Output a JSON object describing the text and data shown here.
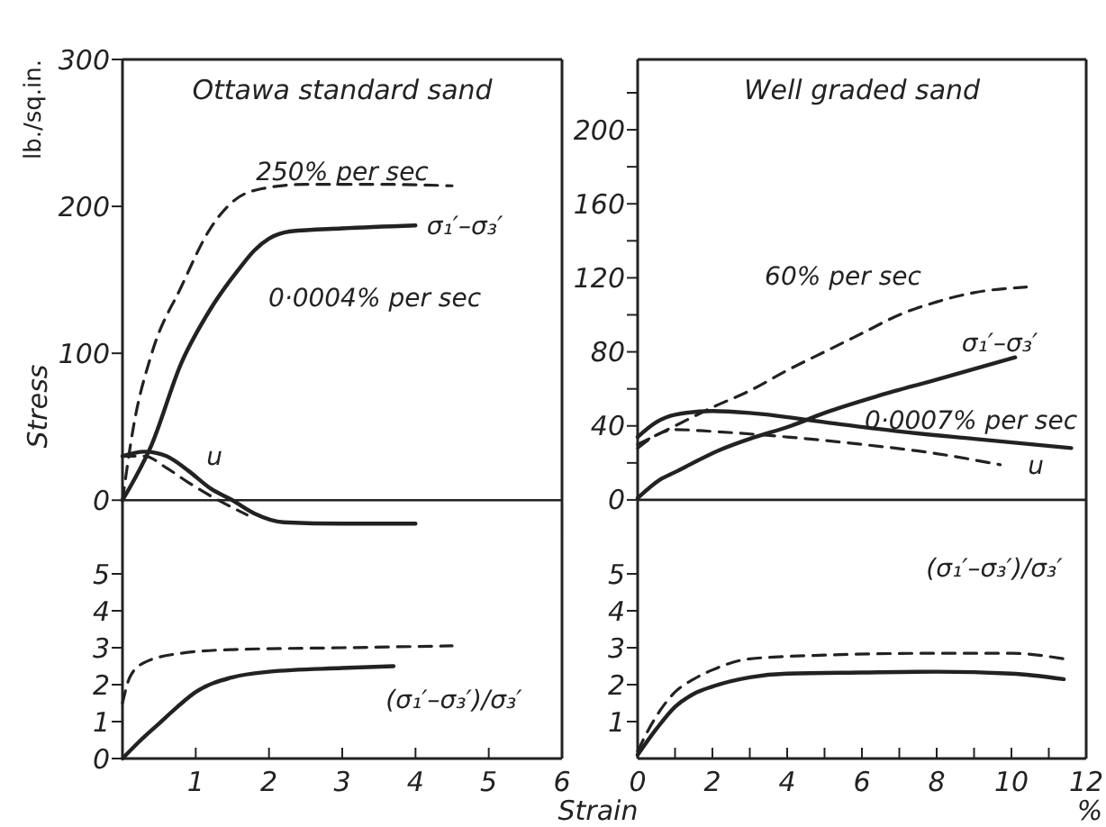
{
  "chart_data": [
    {
      "type": "line",
      "title": "Ottawa standard sand",
      "ylabel": "Stress",
      "xlim": [
        0,
        6
      ],
      "ylim": [
        -25,
        300
      ],
      "yticks": [
        0,
        100,
        200,
        300
      ],
      "tick_labels": "y",
      "ref_lines": [
        {
          "axis": "y",
          "value": 0
        }
      ],
      "annotations": [
        "lb./sq.in.",
        "250% per sec",
        "σ₁′–σ₃′",
        "0·0004% per sec",
        "u"
      ],
      "series": [
        {
          "color": "#222222",
          "line_style": "dashed",
          "x": [
            0,
            0.15,
            0.4,
            0.8,
            1.2,
            1.5,
            1.9,
            2.5,
            3.5,
            4.5
          ],
          "values": [
            0,
            50,
            100,
            145,
            185,
            203,
            212,
            215,
            215,
            214
          ]
        },
        {
          "color": "#222222",
          "line_style": "solid",
          "x": [
            0,
            0.4,
            0.8,
            1.2,
            1.6,
            1.8,
            2.0,
            2.3,
            3,
            4
          ],
          "values": [
            0,
            38,
            93,
            130,
            158,
            170,
            178,
            183,
            185,
            187
          ]
        },
        {
          "color": "#222222",
          "line_style": "solid",
          "x": [
            0,
            0.3,
            0.6,
            0.9,
            1.2,
            1.5,
            1.8,
            2.2,
            3,
            4
          ],
          "values": [
            30,
            33,
            30,
            20,
            8,
            0,
            -9,
            -15,
            -16,
            -16
          ]
        },
        {
          "color": "#222222",
          "line_style": "dashed",
          "x": [
            0,
            0.3,
            0.6,
            0.9,
            1.2,
            1.5,
            1.7
          ],
          "values": [
            30,
            30,
            22,
            12,
            3,
            -5,
            -10
          ]
        }
      ]
    },
    {
      "type": "line",
      "title": "Well graded sand",
      "xlim": [
        0,
        12
      ],
      "ylim": [
        -20,
        238
      ],
      "yticks": [
        0,
        {
          "value": 20,
          "label": null
        },
        40,
        {
          "value": 60,
          "label": null
        },
        80,
        {
          "value": 100,
          "label": null
        },
        120,
        {
          "value": 140,
          "label": null
        },
        160,
        {
          "value": 180,
          "label": null
        },
        200,
        {
          "value": 220,
          "label": null
        }
      ],
      "tick_labels": "y",
      "ref_lines": [
        {
          "axis": "y",
          "value": 0
        }
      ],
      "annotations": [
        "60% per sec",
        "σ₁′–σ₃′",
        "0·0007% per sec",
        "u"
      ],
      "series": [
        {
          "color": "#222222",
          "line_style": "dashed",
          "x": [
            0,
            0.5,
            1,
            2,
            3,
            4,
            5,
            6,
            7,
            8,
            9,
            10.4
          ],
          "values": [
            30,
            35,
            40,
            50,
            59,
            70,
            80,
            90,
            100,
            107,
            112,
            115
          ]
        },
        {
          "color": "#222222",
          "line_style": "solid",
          "x": [
            0,
            0.6,
            1,
            2.2,
            3,
            4.1,
            5,
            6.4,
            8,
            10.1
          ],
          "values": [
            1,
            11,
            15,
            27,
            33,
            40,
            47,
            56,
            65,
            77
          ]
        },
        {
          "color": "#222222",
          "line_style": "solid",
          "x": [
            0,
            0.5,
            1,
            2,
            3,
            5,
            7,
            9,
            11.6
          ],
          "values": [
            34,
            42,
            46,
            48,
            47,
            42,
            37,
            33,
            28
          ]
        },
        {
          "color": "#222222",
          "line_style": "dashed",
          "x": [
            0,
            0.5,
            1,
            2,
            4,
            6,
            8,
            9.7
          ],
          "values": [
            28,
            35,
            38,
            37,
            34,
            30,
            25,
            19
          ]
        }
      ]
    },
    {
      "type": "line",
      "xlabel": "Strain",
      "xlim": [
        0,
        6
      ],
      "ylim": [
        0,
        6
      ],
      "xticks": [
        {
          "value": 0,
          "label": null
        },
        1,
        2,
        3,
        4,
        5,
        6
      ],
      "yticks": [
        0,
        1,
        2,
        3,
        4,
        5
      ],
      "annotations": [
        "(σ₁′–σ₃′)/σ₃′"
      ],
      "series": [
        {
          "color": "#222222",
          "line_style": "solid",
          "x": [
            0,
            0.25,
            0.5,
            0.75,
            1,
            1.5,
            2,
            3,
            3.7
          ],
          "values": [
            0,
            0.5,
            0.95,
            1.4,
            1.8,
            2.2,
            2.35,
            2.45,
            2.5
          ]
        },
        {
          "color": "#222222",
          "line_style": "dashed",
          "x": [
            0,
            0.1,
            0.3,
            0.8,
            1.5,
            3,
            4.5
          ],
          "values": [
            1.5,
            2.2,
            2.6,
            2.85,
            2.95,
            3.0,
            3.05
          ]
        }
      ]
    },
    {
      "type": "line",
      "xlabel": "%",
      "xlim": [
        0,
        12
      ],
      "ylim": [
        0,
        6
      ],
      "xticks": [
        0,
        {
          "value": 1,
          "label": null
        },
        2,
        {
          "value": 3,
          "label": null
        },
        4,
        {
          "value": 5,
          "label": null
        },
        6,
        {
          "value": 7,
          "label": null
        },
        8,
        {
          "value": 9,
          "label": null
        },
        10,
        {
          "value": 11,
          "label": null
        },
        12
      ],
      "yticks": [
        1,
        2,
        3,
        4,
        5
      ],
      "annotations": [
        "(σ₁′–σ₃′)/σ₃′"
      ],
      "series": [
        {
          "color": "#222222",
          "line_style": "solid",
          "x": [
            0,
            0.5,
            1,
            1.5,
            2,
            3,
            4,
            6,
            8,
            10,
            11.4
          ],
          "values": [
            0.1,
            0.8,
            1.4,
            1.75,
            1.95,
            2.2,
            2.3,
            2.33,
            2.35,
            2.3,
            2.15
          ]
        },
        {
          "color": "#222222",
          "line_style": "dashed",
          "x": [
            0,
            0.3,
            0.6,
            1,
            1.5,
            2,
            3,
            5,
            8,
            10,
            11.4
          ],
          "values": [
            0.2,
            0.8,
            1.3,
            1.8,
            2.15,
            2.4,
            2.7,
            2.8,
            2.85,
            2.85,
            2.7
          ]
        }
      ]
    }
  ]
}
